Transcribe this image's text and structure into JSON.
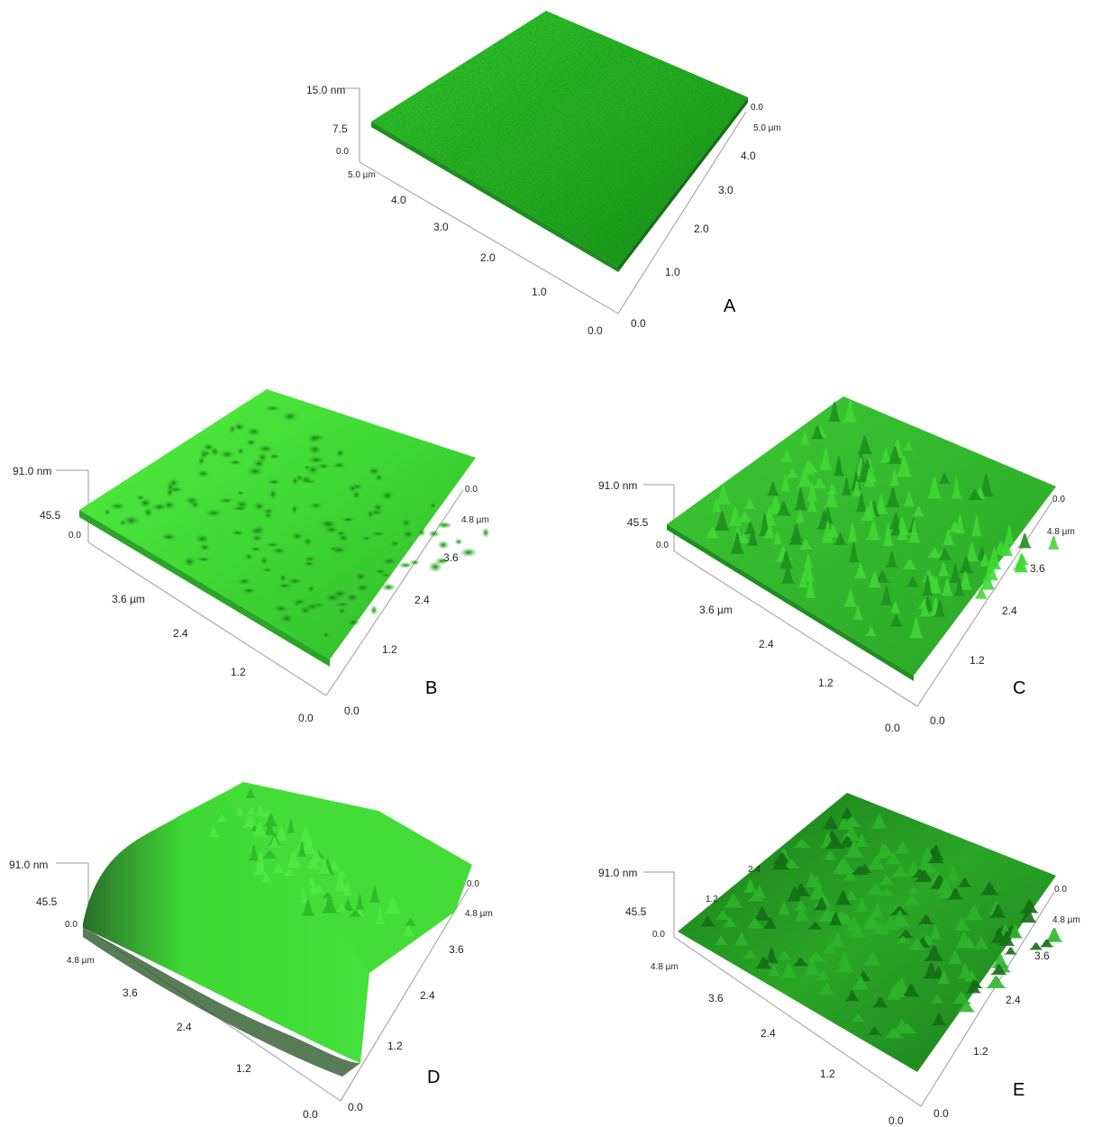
{
  "panels": [
    {
      "id": "A",
      "label": "A",
      "z_labels": [
        "15.0 nm",
        "7.5",
        "0.0"
      ],
      "front_labels": [
        "5.0 µm",
        "4.0",
        "3.0",
        "2.0",
        "1.0",
        "0.0"
      ],
      "right_labels": [
        "0.0",
        "1.0",
        "2.0",
        "3.0",
        "4.0",
        "5.0 µm",
        "0.0"
      ],
      "style": "flat"
    },
    {
      "id": "B",
      "label": "B",
      "z_labels": [
        "91.0 nm",
        "45.5",
        "0.0"
      ],
      "front_labels": [
        "3.6 µm",
        "2.4",
        "1.2",
        "0.0"
      ],
      "right_labels": [
        "0.0",
        "1.2",
        "2.4",
        "3.6",
        "4.8 µm",
        "0.0"
      ],
      "style": "pitted"
    },
    {
      "id": "C",
      "label": "C",
      "z_labels": [
        "91.0 nm",
        "45.5",
        "0.0"
      ],
      "front_labels": [
        "3.6 µm",
        "2.4",
        "1.2",
        "0.0"
      ],
      "right_labels": [
        "0.0",
        "1.2",
        "2.4",
        "3.6",
        "4.8 µm",
        "0.0"
      ],
      "style": "spiky"
    },
    {
      "id": "D",
      "label": "D",
      "z_labels": [
        "91.0 nm",
        "45.5",
        "0.0"
      ],
      "front_labels": [
        "4.8 µm",
        "3.6",
        "2.4",
        "1.2",
        "0.0"
      ],
      "right_labels": [
        "0.0",
        "1.2",
        "2.4",
        "3.6",
        "4.8 µm",
        "0.0"
      ],
      "style": "ridged"
    },
    {
      "id": "E",
      "label": "E",
      "z_labels": [
        "91.0 nm",
        "45.5",
        "0.0"
      ],
      "front_labels": [
        "4.8 µm",
        "3.6",
        "2.4",
        "1.2",
        "0.0"
      ],
      "right_labels": [
        "0.0",
        "1.2",
        "2.4",
        "3.6",
        "4.8 µm",
        "0.0"
      ],
      "extra_labels": [
        "2.4",
        "1.2"
      ],
      "style": "bumpy"
    }
  ],
  "colors": {
    "surface_light": "#4be03c",
    "surface_mid": "#2fb82a",
    "surface_dark": "#0f6a12",
    "axis": "#9a9a9a"
  }
}
